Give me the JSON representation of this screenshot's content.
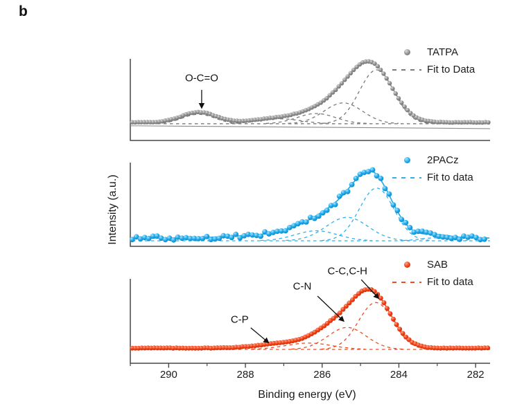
{
  "figure_label": "b",
  "axes": {
    "x_label": "Binding energy (eV)",
    "y_label": "Intensity (a.u.)",
    "x_unit": "eV",
    "x_axis_reversed": true,
    "x_range_eV": [
      291.0,
      281.6
    ],
    "x_major_ticks": [
      290,
      288,
      286,
      284,
      282
    ],
    "x_minor_ticks": [
      291,
      289,
      287,
      285,
      283
    ],
    "y_ticks": "none (arbitrary units)"
  },
  "chart_data": [
    {
      "type": "scatter",
      "series": "TATPA",
      "panel": "top",
      "legend": {
        "series_label": "TATPA",
        "fit_label": "Fit to Data"
      },
      "colors": {
        "main": "#8C8C8C",
        "highlight": "#DCDCDC",
        "edge": "#6F6F6F",
        "fit": "#7A7A7A"
      },
      "baseline_level": 0.222,
      "fit_baseline_level": 0.205,
      "extra_solid_baseline": {
        "from_level": 0.18,
        "to_level": 0.145
      },
      "noise_amplitude": 0.003,
      "noise_seed": 42,
      "marker_step_eV": 0.078,
      "peaks": [
        {
          "center_eV": 284.66,
          "height": 0.63,
          "sigma_eV": 0.52
        },
        {
          "center_eV": 285.35,
          "height": 0.24,
          "sigma_eV": 0.5
        },
        {
          "center_eV": 286.05,
          "height": 0.12,
          "sigma_eV": 0.55
        },
        {
          "center_eV": 287.1,
          "height": 0.05,
          "sigma_eV": 0.6
        },
        {
          "center_eV": 289.22,
          "height": 0.125,
          "sigma_eV": 0.45
        }
      ],
      "fit_components": [
        {
          "center_eV": 284.58,
          "height": 0.66,
          "sigma_eV": 0.45
        },
        {
          "center_eV": 285.45,
          "height": 0.255,
          "sigma_eV": 0.5
        },
        {
          "center_eV": 286.15,
          "height": 0.125,
          "sigma_eV": 0.5
        },
        {
          "center_eV": 287.1,
          "height": 0.06,
          "sigma_eV": 0.55
        },
        {
          "center_eV": 289.22,
          "height": 0.115,
          "sigma_eV": 0.42
        }
      ],
      "annotations": [
        {
          "text": "O-C=O",
          "text_eV": 289.14,
          "text_level": 0.765,
          "arrow_from": {
            "eV": 289.14,
            "level": 0.62
          },
          "arrow_to": {
            "eV": 289.14,
            "level": 0.4
          }
        }
      ]
    },
    {
      "type": "scatter",
      "series": "2PACz",
      "panel": "middle",
      "legend": {
        "series_label": "2PACz",
        "fit_label": "Fit to data"
      },
      "colors": {
        "main": "#1BA7E9",
        "highlight": "#A9E4FC",
        "edge": "#0D86C6",
        "fit": "#2FB0EC"
      },
      "baseline_level": 0.1,
      "fit_baseline_level": 0.066,
      "noise_amplitude": 0.028,
      "noise_seed": 987654,
      "marker_step_eV": 0.108,
      "peaks": [
        {
          "center_eV": 284.68,
          "height": 0.7,
          "sigma_eV": 0.5
        },
        {
          "center_eV": 285.6,
          "height": 0.3,
          "sigma_eV": 0.6
        },
        {
          "center_eV": 286.6,
          "height": 0.08,
          "sigma_eV": 0.6
        },
        {
          "center_eV": 287.9,
          "height": 0.025,
          "sigma_eV": 0.7
        },
        {
          "center_eV": 283.05,
          "height": 0.04,
          "sigma_eV": 0.38
        }
      ],
      "fit_components": [
        {
          "center_eV": 284.58,
          "height": 0.63,
          "sigma_eV": 0.45
        },
        {
          "center_eV": 285.35,
          "height": 0.28,
          "sigma_eV": 0.55
        },
        {
          "center_eV": 286.15,
          "height": 0.12,
          "sigma_eV": 0.55
        },
        {
          "center_eV": 283.05,
          "height": 0.035,
          "sigma_eV": 0.4
        }
      ],
      "annotations": []
    },
    {
      "type": "scatter",
      "series": "SAB",
      "panel": "bottom",
      "legend": {
        "series_label": "SAB",
        "fit_label": "Fit to data"
      },
      "colors": {
        "main": "#EF3B10",
        "highlight": "#FBA488",
        "edge": "#CE2F08",
        "fit": "#F04A20"
      },
      "baseline_level": 0.18,
      "fit_baseline_level": 0.164,
      "noise_amplitude": 0.003,
      "noise_seed": 777,
      "marker_step_eV": 0.082,
      "peaks": [
        {
          "center_eV": 284.7,
          "height": 0.62,
          "sigma_eV": 0.5
        },
        {
          "center_eV": 285.6,
          "height": 0.26,
          "sigma_eV": 0.55
        },
        {
          "center_eV": 286.9,
          "height": 0.06,
          "sigma_eV": 0.7
        }
      ],
      "fit_components": [
        {
          "center_eV": 284.6,
          "height": 0.555,
          "sigma_eV": 0.45
        },
        {
          "center_eV": 285.35,
          "height": 0.26,
          "sigma_eV": 0.5
        },
        {
          "center_eV": 286.35,
          "height": 0.075,
          "sigma_eV": 0.6
        }
      ],
      "annotations": [
        {
          "text": "C-P",
          "text_eV": 288.15,
          "text_level": 0.52,
          "arrow_from": {
            "eV": 287.86,
            "level": 0.42
          },
          "arrow_to": {
            "eV": 287.4,
            "level": 0.245
          }
        },
        {
          "text": "C-N",
          "text_eV": 286.52,
          "text_level": 0.91,
          "arrow_from": {
            "eV": 286.12,
            "level": 0.795
          },
          "arrow_to": {
            "eV": 285.44,
            "level": 0.5
          }
        },
        {
          "text": "C-C,C-H",
          "text_eV": 285.34,
          "text_level": 1.09,
          "arrow_from": {
            "eV": 284.98,
            "level": 0.99
          },
          "arrow_to": {
            "eV": 284.53,
            "level": 0.77
          }
        }
      ]
    }
  ]
}
